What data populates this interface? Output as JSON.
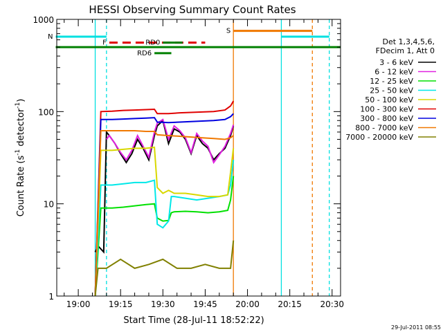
{
  "chart_data": {
    "type": "line",
    "title": "HESSI Observing Summary Count Rates",
    "ylabel_main": "Count Rate (s",
    "ylabel_sup": "-1",
    "ylabel_mid": " detector",
    "ylabel_sup2": "-1",
    "ylabel_end": ")",
    "xlabel": "Start Time (28-Jul-11 18:52:22)",
    "yscale": "log",
    "ylim": [
      1,
      1000
    ],
    "xlim": [
      "18:52:22",
      "20:33:00"
    ],
    "x_ticks": [
      "19:00",
      "19:15",
      "19:30",
      "19:45",
      "20:00",
      "20:15",
      "20:30"
    ],
    "y_ticks": [
      "1",
      "10",
      "100",
      "1000"
    ],
    "timestamp": "29-Jul-2011 08:55",
    "legend": {
      "header": [
        "Det 1,3,4,5,6,",
        "FDecim 1, Att 0"
      ],
      "entries": [
        {
          "label": "3 - 6 keV",
          "color": "#000000"
        },
        {
          "label": "6 - 12 keV",
          "color": "#e020e0"
        },
        {
          "label": "12 - 25 keV",
          "color": "#00e000"
        },
        {
          "label": "25 - 50 keV",
          "color": "#00e8e8"
        },
        {
          "label": "50 - 100 keV",
          "color": "#d8d800"
        },
        {
          "label": "100 - 300 keV",
          "color": "#e00000"
        },
        {
          "label": "300 - 800 keV",
          "color": "#0000e0"
        },
        {
          "label": "800 - 7000 keV",
          "color": "#f07800"
        },
        {
          "label": "7000 - 20000 keV",
          "color": "#808000"
        }
      ]
    },
    "flags": [
      {
        "label": "N",
        "color": "#00e0e0",
        "y": 650,
        "segments": [
          [
            "18:52",
            "19:10"
          ],
          [
            "20:12",
            "20:29"
          ]
        ]
      },
      {
        "label": "F",
        "color": "#e00000",
        "y": 560,
        "dashed": true,
        "segments": [
          [
            "19:11",
            "19:45"
          ]
        ]
      },
      {
        "label": "RD0",
        "color": "#008000",
        "y": 560,
        "segments": [
          [
            "19:30",
            "19:37"
          ]
        ]
      },
      {
        "label": "RD6",
        "color": "#008000",
        "y": 430,
        "segments": [
          [
            "19:27",
            "19:33"
          ]
        ]
      },
      {
        "label": "S",
        "color": "#f07800",
        "y": 750,
        "segments": [
          [
            "19:55",
            "20:23"
          ]
        ]
      },
      {
        "label": "",
        "color": "#008000",
        "y": 500,
        "segments": [
          [
            "18:52",
            "20:33"
          ]
        ]
      }
    ],
    "vlines": [
      {
        "t": "19:06",
        "color": "#00e0e0",
        "dashed": false
      },
      {
        "t": "19:10",
        "color": "#00e0e0",
        "dashed": true
      },
      {
        "t": "19:55",
        "color": "#f07800",
        "dashed": false
      },
      {
        "t": "20:12",
        "color": "#00e0e0",
        "dashed": false
      },
      {
        "t": "20:23",
        "color": "#f07800",
        "dashed": true
      },
      {
        "t": "20:29",
        "color": "#00e0e0",
        "dashed": true
      }
    ],
    "series": [
      {
        "name": "3 - 6 keV",
        "color": "#000000",
        "x": [
          "19:06",
          "19:07",
          "19:09",
          "19:10",
          "19:11",
          "19:13",
          "19:15",
          "19:17",
          "19:19",
          "19:21",
          "19:23",
          "19:25",
          "19:27",
          "19:28",
          "19:30",
          "19:32",
          "19:34",
          "19:36",
          "19:38",
          "19:40",
          "19:42",
          "19:44",
          "19:46",
          "19:48",
          "19:50",
          "19:52",
          "19:54",
          "19:55"
        ],
        "y": [
          3,
          3.5,
          3,
          60,
          55,
          45,
          35,
          28,
          35,
          50,
          40,
          30,
          55,
          70,
          80,
          45,
          65,
          60,
          50,
          35,
          55,
          45,
          40,
          30,
          35,
          40,
          55,
          70
        ]
      },
      {
        "name": "6 - 12 keV",
        "color": "#e020e0",
        "x": [
          "19:10",
          "19:11",
          "19:13",
          "19:15",
          "19:17",
          "19:19",
          "19:21",
          "19:23",
          "19:25",
          "19:27",
          "19:28",
          "19:30",
          "19:32",
          "19:34",
          "19:36",
          "19:38",
          "19:40",
          "19:42",
          "19:44",
          "19:46",
          "19:48",
          "19:50",
          "19:52",
          "19:54",
          "19:55"
        ],
        "y": [
          50,
          55,
          45,
          36,
          30,
          38,
          55,
          42,
          32,
          60,
          75,
          82,
          50,
          70,
          62,
          52,
          36,
          58,
          48,
          42,
          28,
          34,
          42,
          58,
          72
        ]
      },
      {
        "name": "12 - 25 keV",
        "color": "#00e000",
        "x": [
          "19:06",
          "19:08",
          "19:12",
          "19:16",
          "19:20",
          "19:24",
          "19:27",
          "19:28",
          "19:30",
          "19:32",
          "19:33",
          "19:34",
          "19:38",
          "19:42",
          "19:46",
          "19:50",
          "19:53",
          "19:54",
          "19:55"
        ],
        "y": [
          1,
          9,
          9,
          9.2,
          9.5,
          9.8,
          10,
          7,
          6.5,
          6.6,
          8,
          8.2,
          8.3,
          8.2,
          8.0,
          8.2,
          8.5,
          11,
          20
        ]
      },
      {
        "name": "25 - 50 keV",
        "color": "#00e8e8",
        "x": [
          "19:06",
          "19:08",
          "19:12",
          "19:16",
          "19:20",
          "19:24",
          "19:27",
          "19:28",
          "19:30",
          "19:32",
          "19:33",
          "19:34",
          "19:38",
          "19:42",
          "19:46",
          "19:50",
          "19:53",
          "19:54",
          "19:55"
        ],
        "y": [
          1,
          16,
          16,
          16.5,
          17,
          17,
          18,
          6,
          5.5,
          6.5,
          12,
          12,
          11.5,
          11,
          11.5,
          12,
          12.5,
          16,
          30
        ]
      },
      {
        "name": "50 - 100 keV",
        "color": "#d8d800",
        "x": [
          "19:06",
          "19:08",
          "19:12",
          "19:16",
          "19:20",
          "19:24",
          "19:27",
          "19:28",
          "19:30",
          "19:32",
          "19:33",
          "19:34",
          "19:38",
          "19:42",
          "19:46",
          "19:50",
          "19:53",
          "19:54",
          "19:55"
        ],
        "y": [
          1,
          38,
          38,
          39,
          40,
          40,
          41,
          15,
          13,
          14,
          13.5,
          13,
          13,
          12.5,
          12,
          12,
          12.5,
          22,
          40
        ]
      },
      {
        "name": "100 - 300 keV",
        "color": "#e00000",
        "x": [
          "19:06",
          "19:08",
          "19:12",
          "19:16",
          "19:20",
          "19:24",
          "19:27",
          "19:28",
          "19:32",
          "19:36",
          "19:40",
          "19:44",
          "19:48",
          "19:52",
          "19:54",
          "19:55"
        ],
        "y": [
          1,
          100,
          101,
          103,
          104,
          105,
          106,
          95,
          95,
          97,
          98,
          99,
          100,
          104,
          115,
          130
        ]
      },
      {
        "name": "300 - 800 keV",
        "color": "#0000e0",
        "x": [
          "19:06",
          "19:08",
          "19:12",
          "19:16",
          "19:20",
          "19:24",
          "19:27",
          "19:28",
          "19:32",
          "19:36",
          "19:40",
          "19:44",
          "19:48",
          "19:52",
          "19:54",
          "19:55"
        ],
        "y": [
          1,
          82,
          82,
          83,
          84,
          85,
          86,
          77,
          76,
          77,
          78,
          79,
          80,
          82,
          88,
          95
        ]
      },
      {
        "name": "800 - 7000 keV",
        "color": "#f07800",
        "x": [
          "19:06",
          "19:08",
          "19:12",
          "19:16",
          "19:20",
          "19:24",
          "19:27",
          "19:28",
          "19:32",
          "19:36",
          "19:40",
          "19:44",
          "19:48",
          "19:52",
          "19:54",
          "19:55"
        ],
        "y": [
          1,
          62,
          62,
          62,
          62,
          61,
          61,
          56,
          55,
          54,
          53,
          52,
          51,
          50,
          52,
          55
        ]
      },
      {
        "name": "7000 - 20000 keV",
        "color": "#808000",
        "x": [
          "19:06",
          "19:07",
          "19:10",
          "19:15",
          "19:20",
          "19:25",
          "19:30",
          "19:35",
          "19:40",
          "19:45",
          "19:50",
          "19:54",
          "19:55"
        ],
        "y": [
          1,
          2,
          2,
          2.5,
          2,
          2.2,
          2.5,
          2,
          2,
          2.2,
          2,
          2,
          4
        ]
      }
    ]
  }
}
